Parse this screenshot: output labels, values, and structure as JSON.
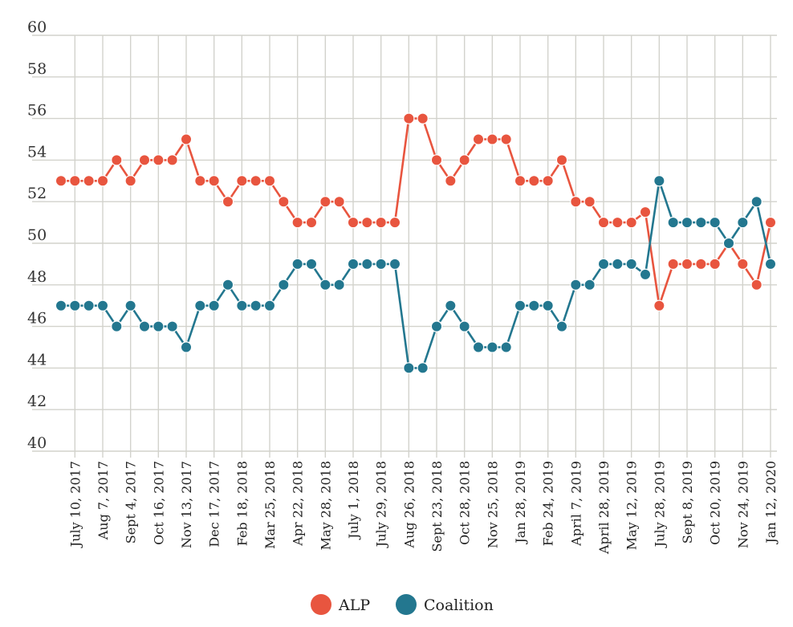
{
  "chart_data": {
    "type": "line",
    "title": "",
    "xlabel": "",
    "ylabel": "",
    "ylim": [
      40,
      60
    ],
    "yticks": [
      40,
      42,
      44,
      46,
      48,
      50,
      52,
      54,
      56,
      58,
      60
    ],
    "grid": true,
    "legend_position": "bottom-center",
    "x_labels_visible": [
      "July 10, 2017",
      "Aug 7, 2017",
      "Sept 4, 2017",
      "Oct 16, 2017",
      "Nov 13, 2017",
      "Dec 17, 2017",
      "Feb 18, 2018",
      "Mar 25, 2018",
      "Apr 22, 2018",
      "May 28, 2018",
      "July 1, 2018",
      "July 29, 2018",
      "Aug 26, 2018",
      "Sept 23, 2018",
      "Oct 28, 2018",
      "Nov 25, 2018",
      "Jan 28, 2019",
      "Feb 24, 2019",
      "April 7, 2019",
      "April 28, 2019",
      "May 12, 2019",
      "July 28, 2019",
      "Sept 8, 2019",
      "Oct 20, 2019",
      "Nov 24, 2019",
      "Jan 12, 2020"
    ],
    "label_every": 2,
    "series": [
      {
        "name": "ALP",
        "color": "#e8553f",
        "values": [
          53,
          53,
          53,
          53,
          54,
          53,
          54,
          54,
          54,
          55,
          53,
          53,
          52,
          53,
          53,
          53,
          52,
          51,
          51,
          52,
          52,
          51,
          51,
          51,
          51,
          56,
          56,
          54,
          53,
          54,
          55,
          55,
          55,
          53,
          53,
          53,
          54,
          52,
          52,
          51,
          51,
          51,
          51.5,
          47,
          49,
          49,
          49,
          49,
          50,
          49,
          48,
          51
        ]
      },
      {
        "name": "Coalition",
        "color": "#23778f",
        "values": [
          47,
          47,
          47,
          47,
          46,
          47,
          46,
          46,
          46,
          45,
          47,
          47,
          48,
          47,
          47,
          47,
          48,
          49,
          49,
          48,
          48,
          49,
          49,
          49,
          49,
          44,
          44,
          46,
          47,
          46,
          45,
          45,
          45,
          47,
          47,
          47,
          46,
          48,
          48,
          49,
          49,
          49,
          48.5,
          53,
          51,
          51,
          51,
          51,
          50,
          51,
          52,
          49
        ]
      }
    ]
  }
}
